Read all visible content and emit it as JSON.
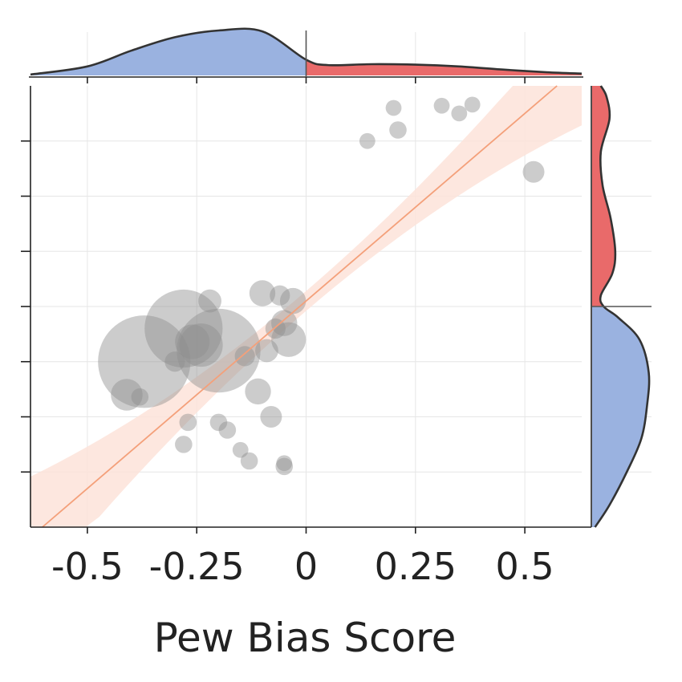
{
  "chart_data": {
    "type": "scatter",
    "title": "",
    "xlabel": "Pew Bias Score",
    "ylabel": "",
    "xlim": [
      -0.63,
      0.63
    ],
    "ylim": [
      -2,
      2
    ],
    "x_ticks": [
      -0.5,
      -0.25,
      0,
      0.25,
      0.5
    ],
    "x_tick_labels": [
      "-0.5",
      "-0.25",
      "0",
      "0.25",
      "0.5"
    ],
    "y_ticks": [
      -1.5,
      -1,
      -0.5,
      0,
      0.5,
      1,
      1.5
    ],
    "y_tick_labels_visible": false,
    "grid": true,
    "points": [
      {
        "x": -0.37,
        "y": -0.5,
        "size": 3.2
      },
      {
        "x": -0.28,
        "y": -0.2,
        "size": 2.7
      },
      {
        "x": -0.2,
        "y": -0.4,
        "size": 2.9
      },
      {
        "x": -0.24,
        "y": -0.35,
        "size": 1.5
      },
      {
        "x": -0.26,
        "y": -0.32,
        "size": 1.2
      },
      {
        "x": -0.22,
        "y": 0.05,
        "size": 0.8
      },
      {
        "x": -0.3,
        "y": -0.5,
        "size": 0.7
      },
      {
        "x": -0.41,
        "y": -0.8,
        "size": 1.1
      },
      {
        "x": -0.38,
        "y": -0.82,
        "size": 0.6
      },
      {
        "x": -0.14,
        "y": -0.45,
        "size": 0.7
      },
      {
        "x": -0.11,
        "y": -0.77,
        "size": 0.9
      },
      {
        "x": -0.08,
        "y": -1.0,
        "size": 0.75
      },
      {
        "x": -0.09,
        "y": -0.4,
        "size": 0.8
      },
      {
        "x": -0.1,
        "y": 0.12,
        "size": 0.9
      },
      {
        "x": -0.06,
        "y": 0.1,
        "size": 0.7
      },
      {
        "x": -0.07,
        "y": -0.2,
        "size": 0.7
      },
      {
        "x": -0.05,
        "y": -0.15,
        "size": 0.9
      },
      {
        "x": -0.04,
        "y": -0.3,
        "size": 1.2
      },
      {
        "x": -0.03,
        "y": 0.05,
        "size": 0.9
      },
      {
        "x": -0.27,
        "y": -1.05,
        "size": 0.6
      },
      {
        "x": -0.28,
        "y": -1.25,
        "size": 0.6
      },
      {
        "x": -0.2,
        "y": -1.05,
        "size": 0.6
      },
      {
        "x": -0.18,
        "y": -1.12,
        "size": 0.6
      },
      {
        "x": -0.15,
        "y": -1.3,
        "size": 0.55
      },
      {
        "x": -0.13,
        "y": -1.4,
        "size": 0.6
      },
      {
        "x": -0.05,
        "y": -1.42,
        "size": 0.55
      },
      {
        "x": -0.05,
        "y": -1.45,
        "size": 0.6
      },
      {
        "x": 0.14,
        "y": 1.5,
        "size": 0.55
      },
      {
        "x": 0.2,
        "y": 1.8,
        "size": 0.55
      },
      {
        "x": 0.21,
        "y": 1.6,
        "size": 0.6
      },
      {
        "x": 0.31,
        "y": 1.82,
        "size": 0.55
      },
      {
        "x": 0.35,
        "y": 1.75,
        "size": 0.55
      },
      {
        "x": 0.38,
        "y": 1.83,
        "size": 0.55
      },
      {
        "x": 0.52,
        "y": 1.22,
        "size": 0.75
      }
    ],
    "regression": {
      "slope": 3.4,
      "intercept": 0.05,
      "ci_half_width_center": 0.09,
      "ci_half_width_edge": 0.55
    },
    "x_marginal_density": {
      "x": [
        -0.63,
        -0.5,
        -0.4,
        -0.3,
        -0.2,
        -0.1,
        0.0,
        0.05,
        0.15,
        0.25,
        0.35,
        0.45,
        0.55,
        0.63
      ],
      "density": [
        0.02,
        0.2,
        0.55,
        0.85,
        1.0,
        0.98,
        0.35,
        0.23,
        0.25,
        0.24,
        0.2,
        0.13,
        0.07,
        0.04
      ],
      "negative_color": "#9ab2e0",
      "positive_color": "#e96a6a"
    },
    "y_marginal_density": {
      "y": [
        -2,
        -1.8,
        -1.5,
        -1.2,
        -0.9,
        -0.6,
        -0.3,
        -0.1,
        0.0,
        0.1,
        0.3,
        0.5,
        0.8,
        1.1,
        1.4,
        1.7,
        1.9,
        2.0
      ],
      "density": [
        0.05,
        0.3,
        0.6,
        0.85,
        0.95,
        0.98,
        0.82,
        0.45,
        0.2,
        0.15,
        0.35,
        0.4,
        0.32,
        0.18,
        0.15,
        0.3,
        0.25,
        0.15
      ],
      "negative_color": "#9ab2e0",
      "positive_color": "#e96a6a"
    },
    "colors": {
      "bubble": "#8f8f8f",
      "regression_line": "#f4a07a",
      "ci_band": "#fde3d9",
      "negative": "#9ab2e0",
      "positive": "#e96a6a"
    }
  }
}
